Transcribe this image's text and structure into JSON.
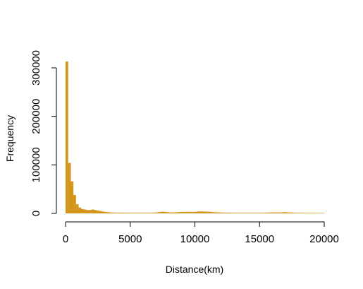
{
  "chart_data": {
    "type": "bar",
    "title": "",
    "xlabel": "Distance(km)",
    "ylabel": "Frequency",
    "xlim": [
      0,
      20000
    ],
    "ylim": [
      0,
      300000
    ],
    "xticks": [
      0,
      5000,
      10000,
      15000,
      20000
    ],
    "yticks": [
      0,
      100000,
      200000,
      300000
    ],
    "bin_width": 200,
    "bar_color": "#D4961A",
    "grid": false,
    "legend": "none",
    "series": [
      {
        "bins_start": 0,
        "values": [
          313000,
          104000,
          66000,
          38000,
          19000,
          12000,
          9000,
          8000,
          7000,
          7000,
          8000,
          7000,
          6000,
          5000,
          4000,
          3000,
          2500,
          2000,
          1800,
          1600,
          1500,
          1500,
          1400,
          1400,
          1400,
          1300,
          1300,
          1300,
          1300,
          1300,
          1300,
          1200,
          1200,
          1500,
          1800,
          2200,
          3000,
          3500,
          3000,
          2500,
          2000,
          2000,
          2200,
          2500,
          3000,
          3000,
          3200,
          3300,
          3200,
          3000,
          3500,
          4000,
          4000,
          3800,
          3500,
          3500,
          3000,
          2500,
          2200,
          2000,
          1800,
          1600,
          1500,
          1400,
          1300,
          1300,
          1200,
          1200,
          1200,
          1200,
          1200,
          1200,
          1200,
          1200,
          1200,
          1300,
          1300,
          1500,
          1800,
          2000,
          2200,
          2000,
          2000,
          2200,
          2500,
          2200,
          2000,
          1800,
          1500,
          1300,
          1200,
          1100,
          1000,
          1000,
          1000,
          1000,
          1000,
          1000,
          1000,
          1000
        ]
      }
    ]
  }
}
